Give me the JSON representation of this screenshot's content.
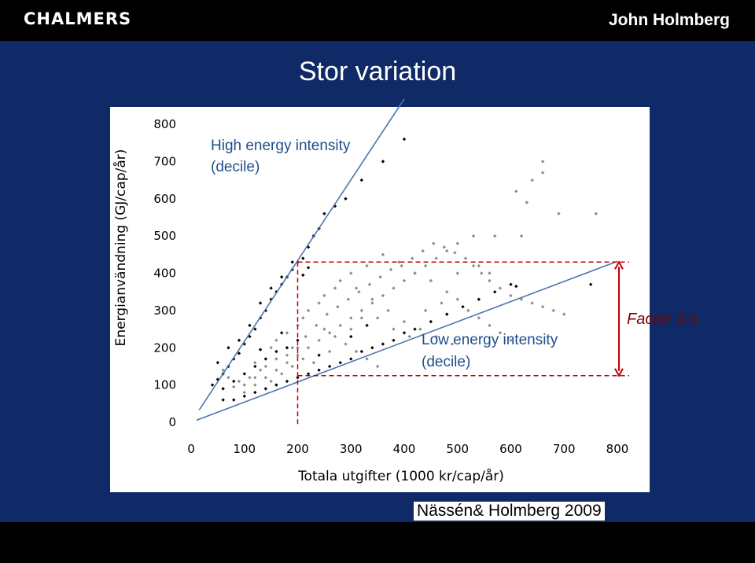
{
  "header": {
    "logo_text": "CHALMERS",
    "author": "John Holmberg"
  },
  "slide": {
    "title": "Stor variation",
    "citation": "Nässén& Holmberg 2009"
  },
  "colors": {
    "background": "#0f2a66",
    "bar": "#000000",
    "low_points": "#000000",
    "mid_points": "#8c8c8c",
    "fit_lines": "#4a78b0",
    "decile_box": "#c00000"
  },
  "chart_data": {
    "type": "scatter",
    "title": "",
    "xlabel": "Totala utgifter (1000 kr/cap/år)",
    "ylabel": "Energianvändning (GJ/cap/år)",
    "xlim": [
      0,
      800
    ],
    "ylim": [
      0,
      800
    ],
    "x_ticks": [
      0,
      100,
      200,
      300,
      400,
      500,
      600,
      700,
      800
    ],
    "y_ticks": [
      0,
      100,
      200,
      300,
      400,
      500,
      600,
      700,
      800
    ],
    "annotations": {
      "high": [
        "High energy intensity",
        "(decile)"
      ],
      "low": [
        "Low energy intensity",
        "(decile)"
      ],
      "factor": "Factor 3.5"
    },
    "lines": [
      {
        "slope": 2.17,
        "x_range": [
          15,
          400
        ]
      },
      {
        "slope": 0.54,
        "x_range": [
          10,
          800
        ]
      }
    ],
    "decile_box": {
      "x": 200,
      "y_low": 125,
      "y_high": 430
    },
    "series": [
      {
        "color": "black",
        "points": [
          [
            40,
            100
          ],
          [
            50,
            115
          ],
          [
            60,
            130
          ],
          [
            70,
            150
          ],
          [
            80,
            170
          ],
          [
            90,
            185
          ],
          [
            100,
            210
          ],
          [
            110,
            230
          ],
          [
            120,
            250
          ],
          [
            130,
            280
          ],
          [
            140,
            300
          ],
          [
            150,
            330
          ],
          [
            160,
            350
          ],
          [
            170,
            370
          ],
          [
            180,
            390
          ],
          [
            190,
            410
          ],
          [
            200,
            430
          ],
          [
            210,
            440
          ],
          [
            220,
            470
          ],
          [
            230,
            500
          ],
          [
            240,
            520
          ],
          [
            250,
            560
          ],
          [
            270,
            580
          ],
          [
            290,
            600
          ],
          [
            320,
            650
          ],
          [
            360,
            700
          ],
          [
            400,
            760
          ],
          [
            60,
            90
          ],
          [
            80,
            110
          ],
          [
            100,
            130
          ],
          [
            120,
            150
          ],
          [
            140,
            170
          ],
          [
            160,
            190
          ],
          [
            180,
            200
          ],
          [
            200,
            220
          ],
          [
            60,
            60
          ],
          [
            80,
            60
          ],
          [
            100,
            70
          ],
          [
            120,
            80
          ],
          [
            140,
            90
          ],
          [
            160,
            100
          ],
          [
            180,
            110
          ],
          [
            200,
            120
          ],
          [
            220,
            130
          ],
          [
            240,
            140
          ],
          [
            260,
            150
          ],
          [
            280,
            160
          ],
          [
            300,
            170
          ],
          [
            320,
            190
          ],
          [
            340,
            200
          ],
          [
            360,
            210
          ],
          [
            380,
            220
          ],
          [
            400,
            240
          ],
          [
            420,
            250
          ],
          [
            450,
            270
          ],
          [
            480,
            290
          ],
          [
            510,
            310
          ],
          [
            540,
            330
          ],
          [
            570,
            350
          ],
          [
            600,
            370
          ],
          [
            610,
            365
          ],
          [
            750,
            370
          ],
          [
            70,
            200
          ],
          [
            90,
            220
          ],
          [
            110,
            260
          ],
          [
            130,
            320
          ],
          [
            150,
            360
          ],
          [
            170,
            390
          ],
          [
            190,
            430
          ],
          [
            220,
            415
          ],
          [
            210,
            395
          ],
          [
            50,
            160
          ],
          [
            130,
            195
          ],
          [
            170,
            240
          ],
          [
            240,
            180
          ],
          [
            300,
            230
          ],
          [
            330,
            260
          ]
        ]
      },
      {
        "color": "gray",
        "points": [
          [
            100,
            80
          ],
          [
            120,
            100
          ],
          [
            140,
            120
          ],
          [
            160,
            140
          ],
          [
            180,
            160
          ],
          [
            200,
            180
          ],
          [
            220,
            200
          ],
          [
            240,
            220
          ],
          [
            260,
            240
          ],
          [
            280,
            260
          ],
          [
            300,
            280
          ],
          [
            320,
            300
          ],
          [
            340,
            320
          ],
          [
            360,
            340
          ],
          [
            380,
            360
          ],
          [
            400,
            380
          ],
          [
            420,
            400
          ],
          [
            440,
            420
          ],
          [
            460,
            440
          ],
          [
            480,
            460
          ],
          [
            500,
            480
          ],
          [
            530,
            500
          ],
          [
            570,
            500
          ],
          [
            620,
            500
          ],
          [
            120,
            160
          ],
          [
            150,
            200
          ],
          [
            180,
            240
          ],
          [
            210,
            280
          ],
          [
            240,
            320
          ],
          [
            270,
            360
          ],
          [
            300,
            400
          ],
          [
            330,
            420
          ],
          [
            360,
            450
          ],
          [
            390,
            430
          ],
          [
            420,
            400
          ],
          [
            450,
            380
          ],
          [
            480,
            350
          ],
          [
            500,
            330
          ],
          [
            520,
            300
          ],
          [
            540,
            280
          ],
          [
            560,
            260
          ],
          [
            580,
            240
          ],
          [
            600,
            220
          ],
          [
            200,
            260
          ],
          [
            220,
            300
          ],
          [
            250,
            340
          ],
          [
            280,
            380
          ],
          [
            310,
            360
          ],
          [
            340,
            330
          ],
          [
            370,
            300
          ],
          [
            400,
            270
          ],
          [
            430,
            250
          ],
          [
            460,
            230
          ],
          [
            490,
            210
          ],
          [
            250,
            250
          ],
          [
            270,
            230
          ],
          [
            290,
            210
          ],
          [
            310,
            190
          ],
          [
            330,
            170
          ],
          [
            350,
            150
          ],
          [
            160,
            220
          ],
          [
            190,
            200
          ],
          [
            230,
            160
          ],
          [
            260,
            190
          ],
          [
            300,
            250
          ],
          [
            320,
            280
          ],
          [
            350,
            280
          ],
          [
            380,
            250
          ],
          [
            410,
            230
          ],
          [
            440,
            300
          ],
          [
            470,
            320
          ],
          [
            500,
            400
          ],
          [
            540,
            420
          ],
          [
            560,
            400
          ],
          [
            610,
            620
          ],
          [
            630,
            590
          ],
          [
            640,
            650
          ],
          [
            660,
            670
          ],
          [
            660,
            700
          ],
          [
            690,
            560
          ],
          [
            760,
            560
          ],
          [
            150,
            110
          ],
          [
            170,
            130
          ],
          [
            190,
            150
          ],
          [
            210,
            170
          ],
          [
            130,
            140
          ],
          [
            110,
            120
          ],
          [
            90,
            110
          ],
          [
            60,
            140
          ],
          [
            70,
            120
          ],
          [
            80,
            95
          ],
          [
            100,
            100
          ],
          [
            120,
            120
          ],
          [
            140,
            150
          ],
          [
            160,
            170
          ],
          [
            180,
            180
          ],
          [
            200,
            200
          ],
          [
            215,
            230
          ],
          [
            235,
            260
          ],
          [
            255,
            290
          ],
          [
            275,
            310
          ],
          [
            295,
            330
          ],
          [
            315,
            350
          ],
          [
            335,
            370
          ],
          [
            355,
            390
          ],
          [
            375,
            410
          ],
          [
            395,
            420
          ],
          [
            415,
            440
          ],
          [
            435,
            460
          ],
          [
            455,
            480
          ],
          [
            475,
            470
          ],
          [
            495,
            455
          ],
          [
            515,
            440
          ],
          [
            530,
            420
          ],
          [
            545,
            400
          ],
          [
            560,
            380
          ],
          [
            580,
            360
          ],
          [
            600,
            340
          ],
          [
            620,
            330
          ],
          [
            640,
            320
          ],
          [
            660,
            310
          ],
          [
            680,
            300
          ],
          [
            700,
            290
          ]
        ]
      }
    ]
  }
}
